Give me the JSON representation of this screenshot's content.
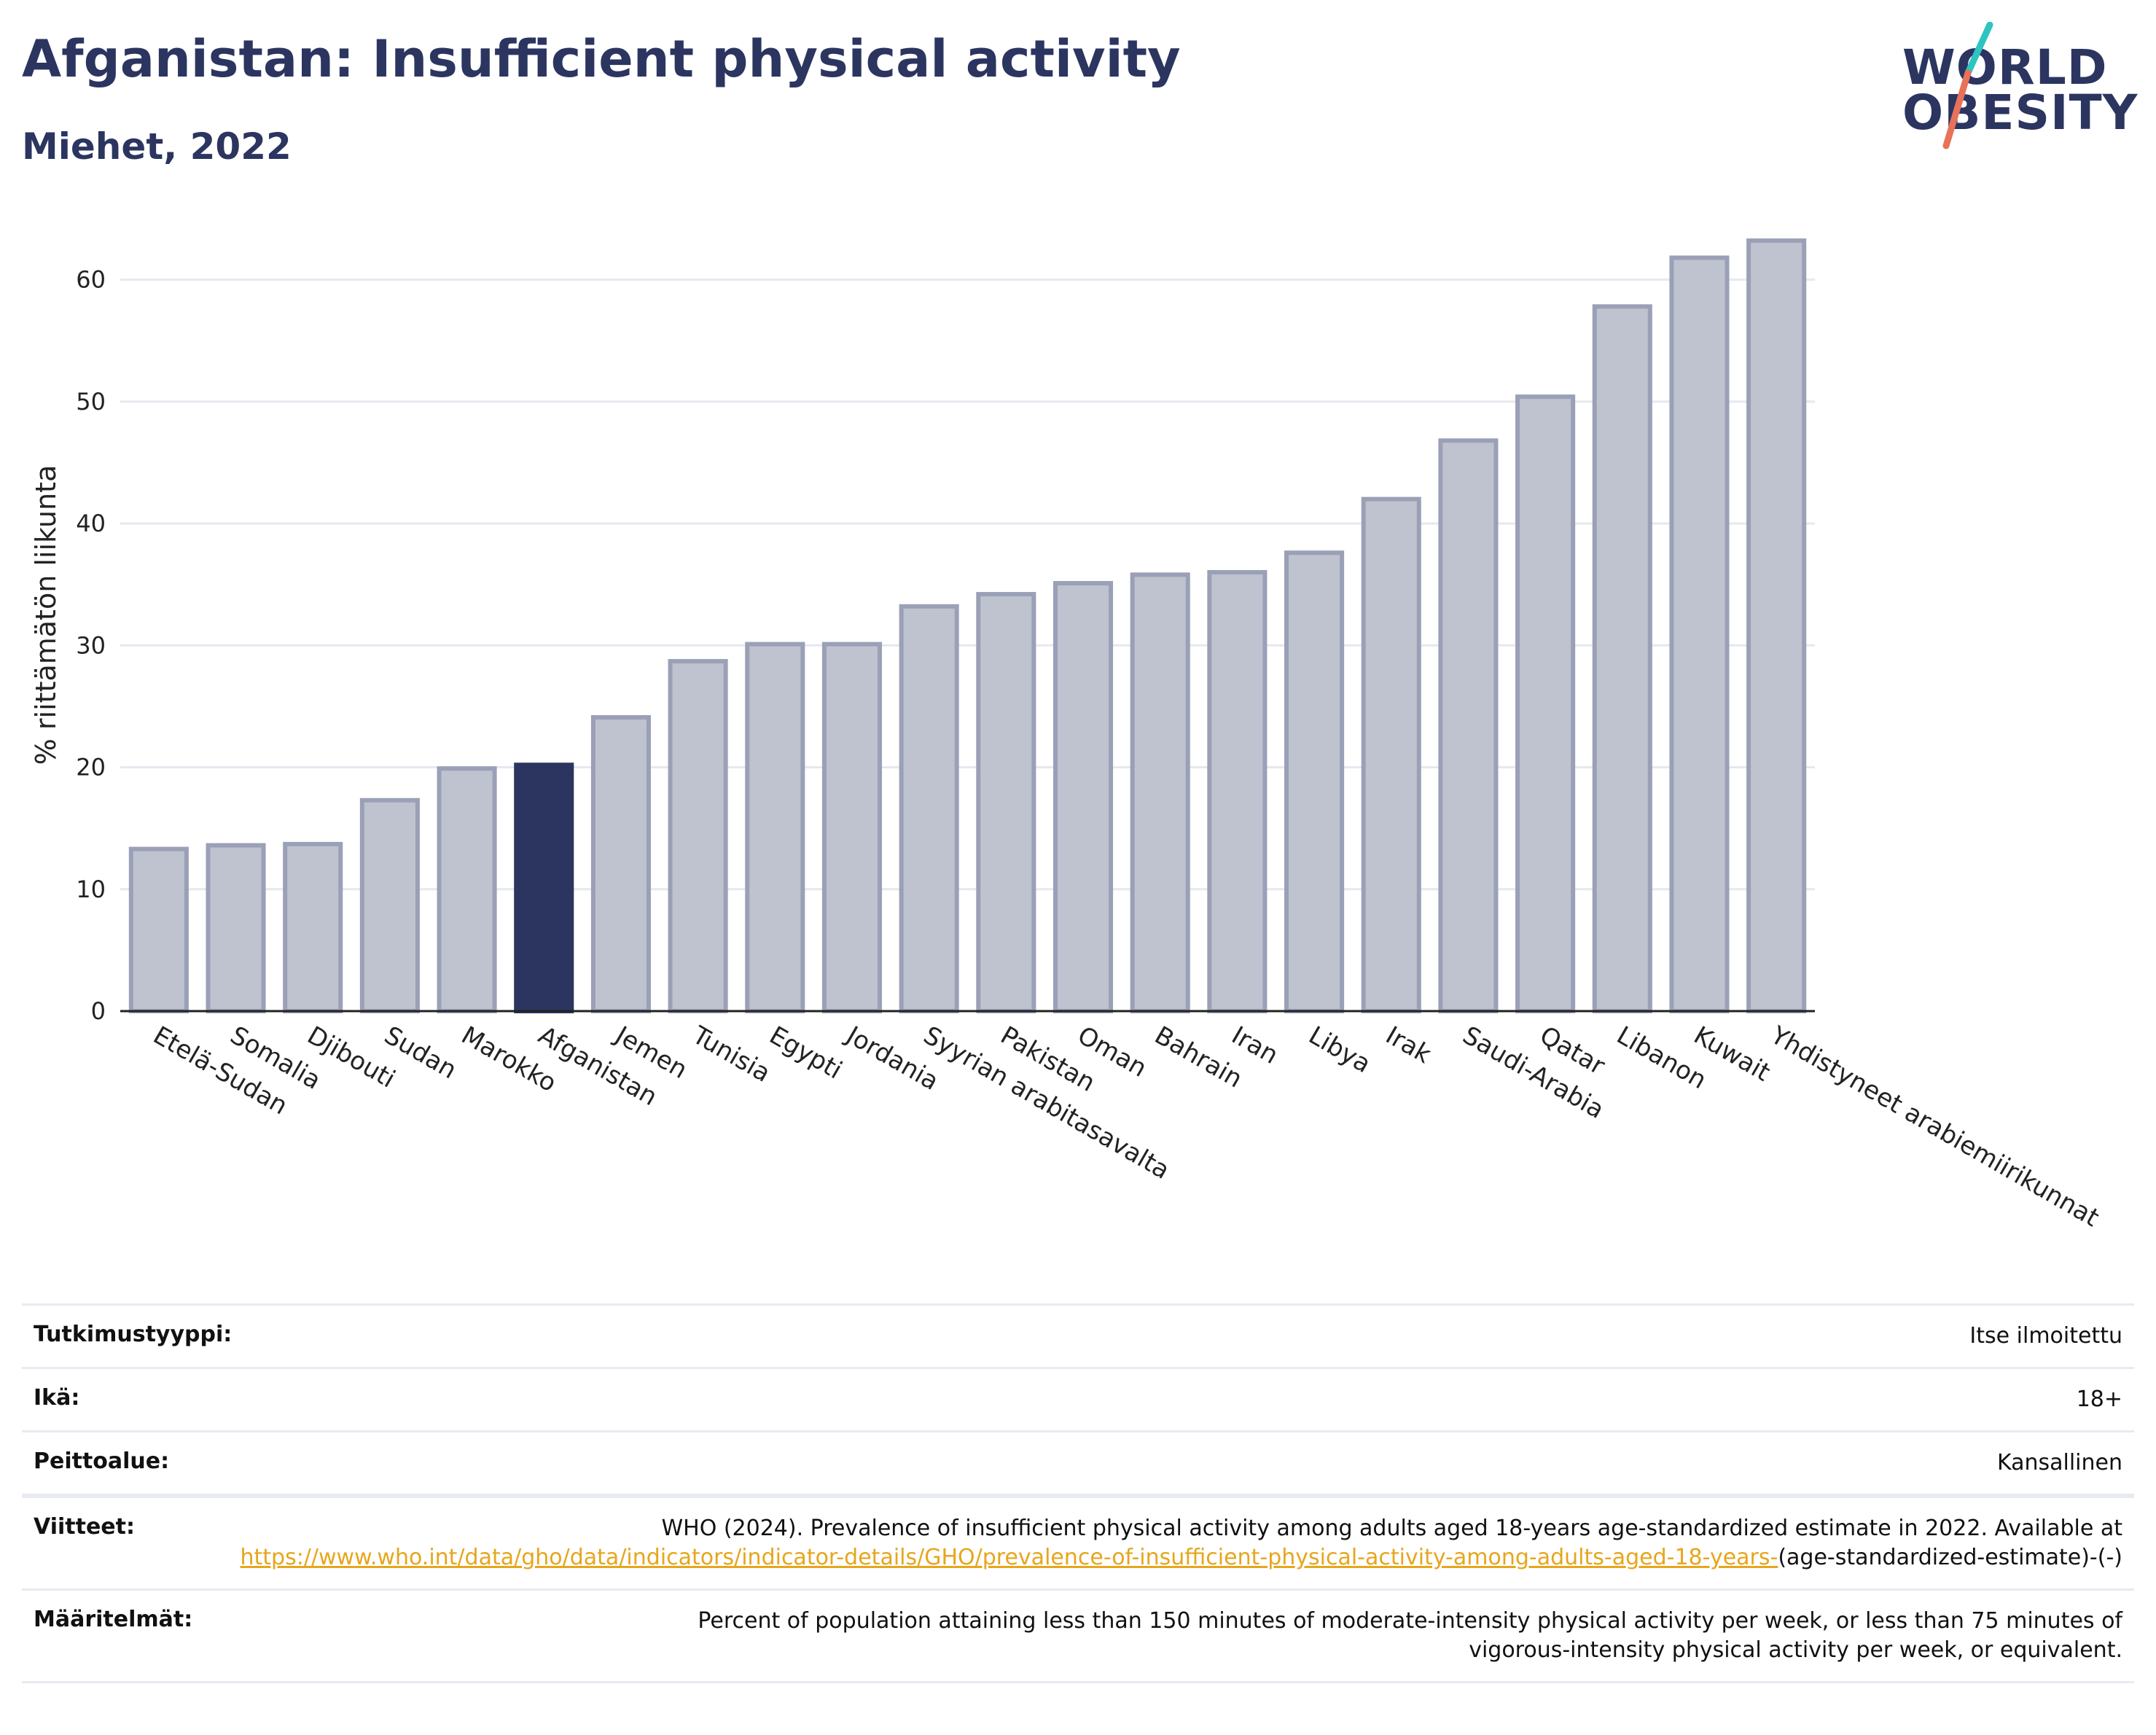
{
  "header": {
    "title": "Afganistan: Insufficient physical activity",
    "subtitle": "Miehet, 2022"
  },
  "logo": {
    "line1": "WORLD",
    "line2": "OBESITY",
    "colors": {
      "text": "#2b3560",
      "slash_top": "#2ec4c1",
      "slash_bottom": "#e8715a"
    }
  },
  "colors": {
    "highlight": "#2b3560",
    "bar": "#bfc2cf",
    "bar_edge": "#9aa0b6",
    "grid": "#e6e8ef",
    "link": "#e6a61c"
  },
  "chart_data": {
    "type": "bar",
    "ylabel": "% riittämätön liikunta",
    "ylim": [
      0,
      65
    ],
    "yticks": [
      0,
      10,
      20,
      30,
      40,
      50,
      60
    ],
    "grid": true,
    "highlight": "Afganistan",
    "categories": [
      "Etelä-Sudan",
      "Somalia",
      "Djibouti",
      "Sudan",
      "Marokko",
      "Afganistan",
      "Jemen",
      "Tunisia",
      "Egypti",
      "Jordania",
      "Syyrian arabitasavalta",
      "Pakistan",
      "Oman",
      "Bahrain",
      "Iran",
      "Libya",
      "Irak",
      "Saudi-Arabia",
      "Qatar",
      "Libanon",
      "Kuwait",
      "Yhdistyneet arabiemiirikunnat"
    ],
    "values": [
      13.3,
      13.6,
      13.7,
      17.3,
      19.9,
      20.2,
      24.1,
      28.7,
      30.1,
      30.1,
      33.2,
      34.2,
      35.1,
      35.8,
      36.0,
      37.6,
      42.0,
      46.8,
      50.4,
      57.8,
      61.8,
      63.2
    ]
  },
  "meta": {
    "rows": [
      {
        "key": "Tutkimustyyppi:",
        "value": "Itse ilmoitettu"
      },
      {
        "key": "Ikä:",
        "value": "18+"
      },
      {
        "key": "Peittoalue:",
        "value": "Kansallinen"
      }
    ],
    "references": {
      "key": "Viitteet:",
      "text": "WHO (2024). Prevalence of insufficient physical activity among adults aged 18-years age-standardized estimate in 2022. Available at",
      "link": "https://www.who.int/data/gho/data/indicators/indicator-details/GHO/prevalence-of-insufficient-physical-activity-among-adults-aged-18-years-",
      "suffix": "(age-standardized-estimate)-(-)"
    },
    "definitions": {
      "key": "Määritelmät:",
      "value": "Percent of population attaining less than 150 minutes of moderate-intensity physical activity per week, or less than 75 minutes of vigorous-intensity physical activity per week, or equivalent."
    }
  }
}
